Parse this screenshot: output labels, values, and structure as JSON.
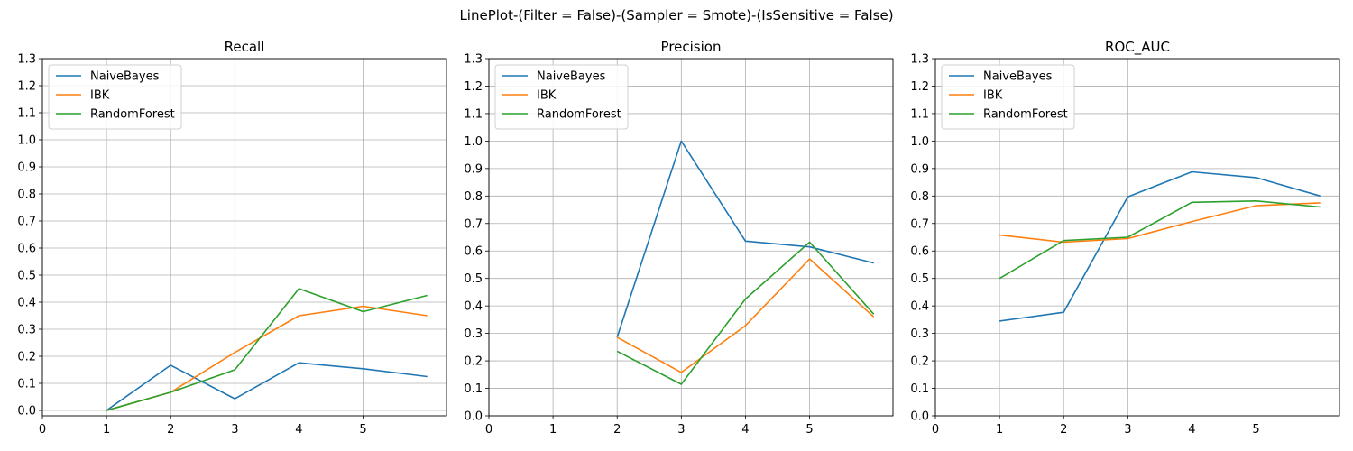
{
  "figure": {
    "suptitle": "LinePlot-(Filter = False)-(Sampler = Smote)-(IsSensitive = False)"
  },
  "chart_data": [
    {
      "type": "line",
      "title": "Recall",
      "xlabel": "",
      "ylabel": "",
      "xlim": [
        0,
        6.3
      ],
      "ylim": [
        -0.02,
        1.3
      ],
      "xticks": [
        0,
        1,
        2,
        3,
        4,
        5
      ],
      "yticks": [
        0.0,
        0.1,
        0.2,
        0.3,
        0.4,
        0.5,
        0.6,
        0.7,
        0.8,
        0.9,
        1.0,
        1.1,
        1.2,
        1.3
      ],
      "grid": true,
      "legend_position": "top-left",
      "series": [
        {
          "name": "NaiveBayes",
          "color": "#1f77b4",
          "x": [
            1,
            2,
            3,
            4,
            5,
            6
          ],
          "values": [
            0.0,
            0.167,
            0.043,
            0.176,
            0.154,
            0.125
          ]
        },
        {
          "name": "IBK",
          "color": "#ff7f0e",
          "x": [
            1,
            2,
            3,
            4,
            5,
            6
          ],
          "values": [
            0.0,
            0.067,
            0.214,
            0.35,
            0.385,
            0.35
          ]
        },
        {
          "name": "RandomForest",
          "color": "#2ca02c",
          "x": [
            1,
            2,
            3,
            4,
            5,
            6
          ],
          "values": [
            0.0,
            0.067,
            0.15,
            0.45,
            0.365,
            0.425
          ]
        }
      ]
    },
    {
      "type": "line",
      "title": "Precision",
      "xlabel": "",
      "ylabel": "",
      "xlim": [
        0,
        6.3
      ],
      "ylim": [
        0,
        1.3
      ],
      "xticks": [
        0,
        1,
        2,
        3,
        4,
        5
      ],
      "yticks": [
        0.0,
        0.1,
        0.2,
        0.3,
        0.4,
        0.5,
        0.6,
        0.7,
        0.8,
        0.9,
        1.0,
        1.1,
        1.2,
        1.3
      ],
      "grid": true,
      "legend_position": "top-left",
      "series": [
        {
          "name": "NaiveBayes",
          "color": "#1f77b4",
          "x": [
            2,
            3,
            4,
            5,
            6
          ],
          "values": [
            0.286,
            1.0,
            0.636,
            0.615,
            0.556
          ]
        },
        {
          "name": "IBK",
          "color": "#ff7f0e",
          "x": [
            2,
            3,
            4,
            5,
            6
          ],
          "values": [
            0.286,
            0.158,
            0.328,
            0.571,
            0.36
          ]
        },
        {
          "name": "RandomForest",
          "color": "#2ca02c",
          "x": [
            2,
            3,
            4,
            5,
            6
          ],
          "values": [
            0.235,
            0.115,
            0.425,
            0.632,
            0.37
          ]
        }
      ]
    },
    {
      "type": "line",
      "title": "ROC_AUC",
      "xlabel": "",
      "ylabel": "",
      "xlim": [
        0,
        6.3
      ],
      "ylim": [
        0,
        1.3
      ],
      "xticks": [
        0,
        1,
        2,
        3,
        4,
        5
      ],
      "yticks": [
        0.0,
        0.1,
        0.2,
        0.3,
        0.4,
        0.5,
        0.6,
        0.7,
        0.8,
        0.9,
        1.0,
        1.1,
        1.2,
        1.3
      ],
      "grid": true,
      "legend_position": "top-left",
      "series": [
        {
          "name": "NaiveBayes",
          "color": "#1f77b4",
          "x": [
            1,
            2,
            3,
            4,
            5,
            6
          ],
          "values": [
            0.345,
            0.377,
            0.797,
            0.888,
            0.867,
            0.8
          ]
        },
        {
          "name": "IBK",
          "color": "#ff7f0e",
          "x": [
            1,
            2,
            3,
            4,
            5,
            6
          ],
          "values": [
            0.658,
            0.632,
            0.645,
            0.707,
            0.765,
            0.775
          ]
        },
        {
          "name": "RandomForest",
          "color": "#2ca02c",
          "x": [
            1,
            2,
            3,
            4,
            5,
            6
          ],
          "values": [
            0.5,
            0.638,
            0.65,
            0.777,
            0.782,
            0.76
          ]
        }
      ]
    }
  ]
}
